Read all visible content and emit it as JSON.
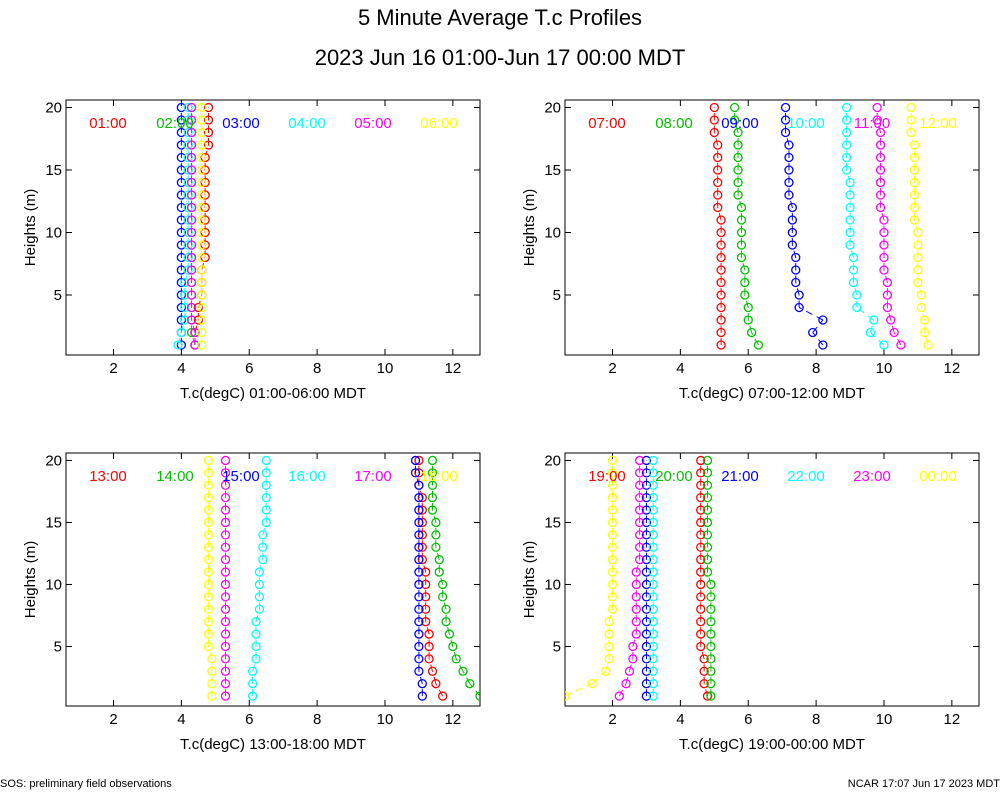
{
  "title": "5 Minute Average T.c Profiles",
  "subtitle": "2023 Jun 16 01:00-Jun 17 00:00 MDT",
  "footer_left": "SOS: preliminary field observations",
  "footer_right": "NCAR 17:07 Jun 17 2023 MDT",
  "colors": [
    "#ff0000",
    "#00c000",
    "#0000ff",
    "#00ffff",
    "#ff00ff",
    "#ffff00"
  ],
  "heights": [
    1,
    2,
    3,
    4,
    5,
    6,
    7,
    8,
    9,
    10,
    11,
    12,
    13,
    14,
    15,
    16,
    17,
    18,
    19,
    20
  ],
  "chart_data": [
    {
      "type": "scatter",
      "xlabel": "T.c(degC) 01:00-06:00 MDT",
      "ylabel": "Heights (m)",
      "xlim": [
        0.6,
        12.8
      ],
      "ylim": [
        0.2,
        20.6
      ],
      "xticks": [
        2,
        4,
        6,
        8,
        10,
        12
      ],
      "yticks": [
        5,
        10,
        15,
        20
      ],
      "series": [
        {
          "name": "01:00",
          "values": [
            4.4,
            4.4,
            4.5,
            4.5,
            4.6,
            4.6,
            4.6,
            4.7,
            4.7,
            4.7,
            4.7,
            4.7,
            4.7,
            4.7,
            4.7,
            4.7,
            4.8,
            4.8,
            4.8,
            4.8
          ]
        },
        {
          "name": "02:00",
          "values": [
            4.4,
            4.3,
            4.3,
            4.3,
            4.3,
            4.3,
            4.3,
            4.3,
            4.3,
            4.3,
            4.3,
            4.3,
            4.3,
            4.3,
            4.3,
            4.3,
            4.3,
            4.3,
            4.3,
            4.3
          ]
        },
        {
          "name": "03:00",
          "values": [
            4.0,
            4.0,
            4.0,
            4.0,
            4.0,
            4.0,
            4.0,
            4.0,
            4.0,
            4.0,
            4.0,
            4.0,
            4.0,
            4.0,
            4.0,
            4.0,
            4.0,
            4.0,
            4.0,
            4.0
          ]
        },
        {
          "name": "04:00",
          "values": [
            3.9,
            4.0,
            4.1,
            4.1,
            4.1,
            4.1,
            4.2,
            4.2,
            4.2,
            4.2,
            4.2,
            4.2,
            4.2,
            4.2,
            4.2,
            4.2,
            4.2,
            4.2,
            4.2,
            4.2
          ]
        },
        {
          "name": "05:00",
          "values": [
            4.4,
            4.4,
            4.3,
            4.3,
            4.3,
            4.3,
            4.3,
            4.3,
            4.3,
            4.3,
            4.3,
            4.3,
            4.3,
            4.3,
            4.3,
            4.3,
            4.3,
            4.3,
            4.3,
            4.3
          ]
        },
        {
          "name": "06:00",
          "values": [
            4.6,
            4.6,
            4.6,
            4.6,
            4.6,
            4.6,
            4.6,
            4.6,
            4.6,
            4.6,
            4.6,
            4.6,
            4.6,
            4.6,
            4.6,
            4.6,
            4.6,
            4.6,
            4.6,
            4.6
          ]
        }
      ]
    },
    {
      "type": "scatter",
      "xlabel": "T.c(degC) 07:00-12:00 MDT",
      "ylabel": "Heights (m)",
      "xlim": [
        0.6,
        12.8
      ],
      "ylim": [
        0.2,
        20.6
      ],
      "xticks": [
        2,
        4,
        6,
        8,
        10,
        12
      ],
      "yticks": [
        5,
        10,
        15,
        20
      ],
      "series": [
        {
          "name": "07:00",
          "values": [
            5.2,
            5.2,
            5.2,
            5.2,
            5.2,
            5.2,
            5.2,
            5.2,
            5.2,
            5.2,
            5.2,
            5.1,
            5.1,
            5.1,
            5.1,
            5.1,
            5.1,
            5.0,
            5.0,
            5.0
          ]
        },
        {
          "name": "08:00",
          "values": [
            6.3,
            6.1,
            6.0,
            6.0,
            5.9,
            5.9,
            5.9,
            5.8,
            5.8,
            5.8,
            5.8,
            5.8,
            5.7,
            5.7,
            5.7,
            5.7,
            5.7,
            5.7,
            5.6,
            5.6
          ]
        },
        {
          "name": "09:00",
          "values": [
            8.2,
            7.9,
            8.2,
            7.5,
            7.5,
            7.4,
            7.4,
            7.4,
            7.3,
            7.3,
            7.3,
            7.3,
            7.2,
            7.2,
            7.2,
            7.2,
            7.2,
            7.1,
            7.1,
            7.1
          ]
        },
        {
          "name": "10:00",
          "values": [
            10.0,
            9.6,
            9.7,
            9.2,
            9.2,
            9.1,
            9.1,
            9.1,
            9.0,
            9.0,
            9.0,
            9.0,
            9.0,
            9.0,
            8.9,
            8.9,
            8.9,
            8.9,
            8.9,
            8.9
          ]
        },
        {
          "name": "11:00",
          "values": [
            10.5,
            10.3,
            10.2,
            10.1,
            10.1,
            10.1,
            10.0,
            10.0,
            10.0,
            10.0,
            10.0,
            9.9,
            9.9,
            9.9,
            9.9,
            9.9,
            9.9,
            9.9,
            9.8,
            9.8
          ]
        },
        {
          "name": "12:00",
          "values": [
            11.3,
            11.2,
            11.2,
            11.1,
            11.1,
            11.0,
            11.0,
            11.0,
            11.0,
            11.0,
            10.9,
            10.9,
            10.9,
            10.9,
            10.9,
            10.9,
            10.9,
            10.8,
            10.8,
            10.8
          ]
        }
      ]
    },
    {
      "type": "scatter",
      "xlabel": "T.c(degC) 13:00-18:00 MDT",
      "ylabel": "Heights (m)",
      "xlim": [
        0.6,
        12.8
      ],
      "ylim": [
        0.2,
        20.6
      ],
      "xticks": [
        2,
        4,
        6,
        8,
        10,
        12
      ],
      "yticks": [
        5,
        10,
        15,
        20
      ],
      "series": [
        {
          "name": "13:00",
          "values": [
            11.7,
            11.5,
            11.4,
            11.3,
            11.3,
            11.3,
            11.2,
            11.2,
            11.2,
            11.2,
            11.2,
            11.1,
            11.1,
            11.1,
            11.1,
            11.1,
            11.1,
            11.0,
            11.0,
            11.0
          ]
        },
        {
          "name": "14:00",
          "values": [
            12.8,
            12.5,
            12.3,
            12.1,
            12.0,
            11.9,
            11.8,
            11.8,
            11.7,
            11.7,
            11.6,
            11.6,
            11.5,
            11.5,
            11.5,
            11.4,
            11.4,
            11.4,
            11.4,
            11.4
          ]
        },
        {
          "name": "15:00",
          "values": [
            11.1,
            11.1,
            11.0,
            11.0,
            11.0,
            11.0,
            11.0,
            11.0,
            11.0,
            11.0,
            11.0,
            11.0,
            11.0,
            11.0,
            11.0,
            11.0,
            11.0,
            11.0,
            10.9,
            10.9
          ]
        },
        {
          "name": "16:00",
          "values": [
            6.1,
            6.1,
            6.1,
            6.2,
            6.2,
            6.2,
            6.2,
            6.3,
            6.3,
            6.3,
            6.3,
            6.4,
            6.4,
            6.4,
            6.5,
            6.5,
            6.5,
            6.5,
            6.5,
            6.5
          ]
        },
        {
          "name": "17:00",
          "values": [
            5.3,
            5.3,
            5.3,
            5.3,
            5.3,
            5.3,
            5.3,
            5.3,
            5.3,
            5.3,
            5.3,
            5.3,
            5.3,
            5.3,
            5.3,
            5.3,
            5.3,
            5.3,
            5.3,
            5.3
          ]
        },
        {
          "name": "18:00",
          "values": [
            4.9,
            4.9,
            4.9,
            4.9,
            4.8,
            4.8,
            4.8,
            4.8,
            4.8,
            4.8,
            4.8,
            4.8,
            4.8,
            4.8,
            4.8,
            4.8,
            4.8,
            4.8,
            4.8,
            4.8
          ]
        }
      ]
    },
    {
      "type": "scatter",
      "xlabel": "T.c(degC) 19:00-00:00 MDT",
      "ylabel": "Heights (m)",
      "xlim": [
        0.6,
        12.8
      ],
      "ylim": [
        0.2,
        20.6
      ],
      "xticks": [
        2,
        4,
        6,
        8,
        10,
        12
      ],
      "yticks": [
        5,
        10,
        15,
        20
      ],
      "series": [
        {
          "name": "19:00",
          "values": [
            4.8,
            4.7,
            4.7,
            4.7,
            4.6,
            4.6,
            4.6,
            4.6,
            4.6,
            4.6,
            4.6,
            4.6,
            4.6,
            4.6,
            4.6,
            4.6,
            4.6,
            4.6,
            4.6,
            4.6
          ]
        },
        {
          "name": "20:00",
          "values": [
            4.9,
            4.9,
            4.9,
            4.9,
            4.9,
            4.9,
            4.9,
            4.9,
            4.9,
            4.9,
            4.8,
            4.8,
            4.8,
            4.8,
            4.8,
            4.8,
            4.8,
            4.8,
            4.8,
            4.8
          ]
        },
        {
          "name": "21:00",
          "values": [
            3.0,
            3.0,
            3.0,
            3.0,
            3.0,
            3.0,
            3.0,
            3.0,
            3.0,
            3.0,
            3.0,
            3.0,
            3.0,
            3.0,
            3.0,
            3.0,
            3.0,
            3.0,
            3.0,
            3.0
          ]
        },
        {
          "name": "22:00",
          "values": [
            3.2,
            3.2,
            3.2,
            3.2,
            3.2,
            3.2,
            3.2,
            3.2,
            3.2,
            3.2,
            3.2,
            3.2,
            3.2,
            3.2,
            3.2,
            3.2,
            3.2,
            3.2,
            3.2,
            3.2
          ]
        },
        {
          "name": "23:00",
          "values": [
            2.2,
            2.4,
            2.5,
            2.6,
            2.6,
            2.7,
            2.7,
            2.7,
            2.7,
            2.7,
            2.7,
            2.8,
            2.8,
            2.8,
            2.8,
            2.8,
            2.8,
            2.8,
            2.8,
            2.8
          ]
        },
        {
          "name": "00:00",
          "values": [
            0.6,
            1.4,
            1.8,
            1.9,
            1.9,
            1.9,
            1.9,
            2.0,
            2.0,
            2.0,
            2.0,
            2.0,
            2.0,
            2.0,
            2.0,
            2.0,
            2.0,
            2.0,
            2.0,
            2.0
          ]
        }
      ]
    }
  ]
}
